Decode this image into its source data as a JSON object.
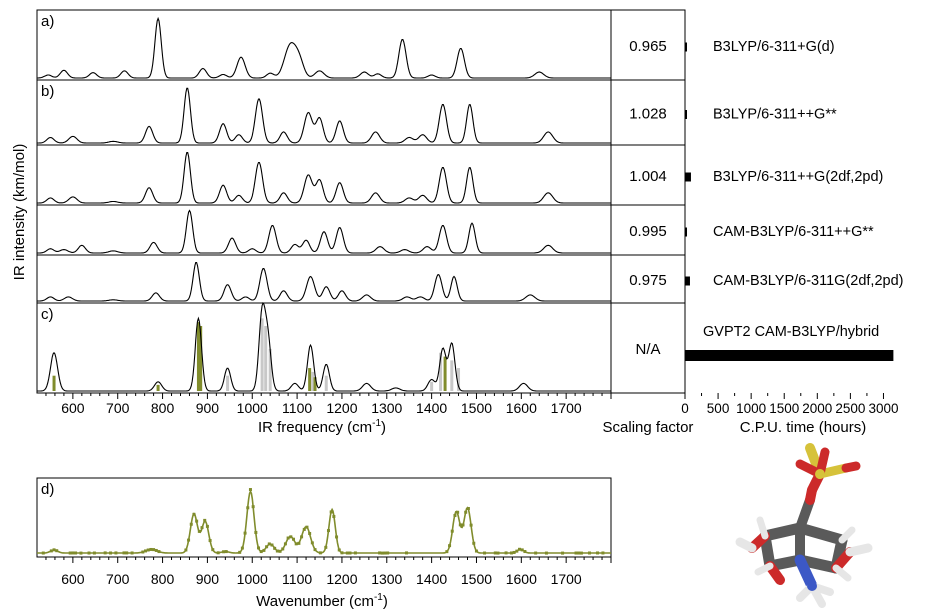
{
  "chart_data": [
    {
      "type": "line",
      "panels": [
        "a)",
        "b)",
        "",
        "",
        "",
        "c)"
      ],
      "ylabel": "IR intensity (km/mol)",
      "xlabel": "IR frequency (cm",
      "xlabel_sup": "-1",
      "xlabel_close": ")",
      "xlim": [
        520,
        1800
      ],
      "x_ticks": [
        600,
        700,
        800,
        900,
        1000,
        1100,
        1200,
        1300,
        1400,
        1500,
        1600,
        1700
      ],
      "series": [
        {
          "name": "B3LYP/6-311+G(d)",
          "scaling_factor": "0.965",
          "cpu_hours": 18,
          "peaks": [
            [
              545,
              0.05,
              8
            ],
            [
              580,
              0.13,
              8
            ],
            [
              645,
              0.09,
              8
            ],
            [
              715,
              0.12,
              8
            ],
            [
              790,
              1.0,
              7
            ],
            [
              890,
              0.16,
              8
            ],
            [
              935,
              0.06,
              8
            ],
            [
              975,
              0.35,
              9
            ],
            [
              1040,
              0.08,
              8
            ],
            [
              1085,
              0.55,
              13
            ],
            [
              1105,
              0.25,
              10
            ],
            [
              1150,
              0.12,
              10
            ],
            [
              1250,
              0.1,
              9
            ],
            [
              1280,
              0.07,
              8
            ],
            [
              1335,
              0.65,
              8
            ],
            [
              1400,
              0.05,
              8
            ],
            [
              1465,
              0.5,
              8
            ],
            [
              1640,
              0.1,
              10
            ]
          ]
        },
        {
          "name": "B3LYP/6-311++G**",
          "scaling_factor": "1.028",
          "cpu_hours": 22,
          "peaks": [
            [
              550,
              0.1,
              8
            ],
            [
              600,
              0.12,
              9
            ],
            [
              690,
              0.03,
              10
            ],
            [
              770,
              0.3,
              8
            ],
            [
              855,
              1.0,
              7
            ],
            [
              935,
              0.35,
              8
            ],
            [
              970,
              0.15,
              8
            ],
            [
              1015,
              0.8,
              8
            ],
            [
              1070,
              0.2,
              8
            ],
            [
              1125,
              0.55,
              9
            ],
            [
              1150,
              0.45,
              8
            ],
            [
              1195,
              0.4,
              8
            ],
            [
              1275,
              0.2,
              9
            ],
            [
              1350,
              0.1,
              9
            ],
            [
              1380,
              0.15,
              9
            ],
            [
              1425,
              0.7,
              8
            ],
            [
              1485,
              0.7,
              7
            ],
            [
              1660,
              0.2,
              10
            ]
          ]
        },
        {
          "name": "B3LYP/6-311++G(2df,2pd)",
          "scaling_factor": "1.004",
          "cpu_hours": 90,
          "peaks": [
            [
              550,
              0.1,
              8
            ],
            [
              600,
              0.12,
              9
            ],
            [
              690,
              0.03,
              10
            ],
            [
              770,
              0.3,
              8
            ],
            [
              855,
              1.0,
              7
            ],
            [
              935,
              0.35,
              8
            ],
            [
              970,
              0.15,
              8
            ],
            [
              1015,
              0.8,
              8
            ],
            [
              1070,
              0.2,
              8
            ],
            [
              1125,
              0.55,
              9
            ],
            [
              1150,
              0.45,
              8
            ],
            [
              1195,
              0.4,
              8
            ],
            [
              1275,
              0.2,
              9
            ],
            [
              1350,
              0.1,
              9
            ],
            [
              1380,
              0.15,
              9
            ],
            [
              1425,
              0.7,
              8
            ],
            [
              1485,
              0.7,
              7
            ],
            [
              1660,
              0.2,
              10
            ]
          ]
        },
        {
          "name": "CAM-B3LYP/6-311++G**",
          "scaling_factor": "0.995",
          "cpu_hours": 25,
          "peaks": [
            [
              550,
              0.1,
              8
            ],
            [
              580,
              0.08,
              9
            ],
            [
              620,
              0.18,
              8
            ],
            [
              690,
              0.05,
              10
            ],
            [
              780,
              0.25,
              8
            ],
            [
              860,
              1.0,
              7
            ],
            [
              955,
              0.35,
              8
            ],
            [
              1000,
              0.1,
              8
            ],
            [
              1045,
              0.65,
              8
            ],
            [
              1095,
              0.2,
              8
            ],
            [
              1120,
              0.3,
              8
            ],
            [
              1160,
              0.5,
              8
            ],
            [
              1195,
              0.6,
              8
            ],
            [
              1285,
              0.15,
              9
            ],
            [
              1340,
              0.08,
              9
            ],
            [
              1390,
              0.15,
              9
            ],
            [
              1425,
              0.65,
              8
            ],
            [
              1490,
              0.7,
              7
            ],
            [
              1660,
              0.18,
              10
            ]
          ]
        },
        {
          "name": "CAM-B3LYP/6-311G(2df,2pd)",
          "scaling_factor": "0.975",
          "cpu_hours": 75,
          "peaks": [
            [
              550,
              0.1,
              8
            ],
            [
              590,
              0.1,
              9
            ],
            [
              690,
              0.03,
              10
            ],
            [
              785,
              0.2,
              8
            ],
            [
              875,
              0.95,
              7
            ],
            [
              945,
              0.4,
              8
            ],
            [
              985,
              0.1,
              8
            ],
            [
              1025,
              0.8,
              8
            ],
            [
              1070,
              0.25,
              8
            ],
            [
              1130,
              0.6,
              9
            ],
            [
              1165,
              0.35,
              8
            ],
            [
              1200,
              0.25,
              8
            ],
            [
              1255,
              0.15,
              9
            ],
            [
              1345,
              0.1,
              9
            ],
            [
              1375,
              0.1,
              9
            ],
            [
              1415,
              0.65,
              8
            ],
            [
              1450,
              0.6,
              7
            ],
            [
              1620,
              0.15,
              10
            ]
          ]
        },
        {
          "name": "GVPT2 CAM-B3LYP/hybrid",
          "scaling_factor": "N/A",
          "cpu_hours": 3150,
          "peaks": [
            [
              558,
              0.5,
              8
            ],
            [
              790,
              0.12,
              8
            ],
            [
              880,
              0.95,
              7
            ],
            [
              945,
              0.3,
              7
            ],
            [
              1022,
              1.0,
              7
            ],
            [
              1035,
              0.65,
              7
            ],
            [
              1095,
              0.1,
              8
            ],
            [
              1130,
              0.6,
              7
            ],
            [
              1165,
              0.35,
              7
            ],
            [
              1255,
              0.1,
              9
            ],
            [
              1320,
              0.04,
              9
            ],
            [
              1400,
              0.15,
              8
            ],
            [
              1425,
              0.55,
              7
            ],
            [
              1445,
              0.62,
              7
            ],
            [
              1605,
              0.1,
              9
            ]
          ],
          "sticks": [
            [
              558,
              0.2,
              "olive"
            ],
            [
              790,
              0.08,
              "olive"
            ],
            [
              880,
              0.9,
              "olive"
            ],
            [
              885,
              0.85,
              "olive"
            ],
            [
              945,
              0.2,
              "gray"
            ],
            [
              1022,
              0.95,
              "gray"
            ],
            [
              1030,
              0.85,
              "gray"
            ],
            [
              1040,
              0.55,
              "gray"
            ],
            [
              1128,
              0.3,
              "olive"
            ],
            [
              1135,
              0.25,
              "gray"
            ],
            [
              1140,
              0.18,
              "olive"
            ],
            [
              1165,
              0.2,
              "gray"
            ],
            [
              1400,
              0.12,
              "gray"
            ],
            [
              1420,
              0.5,
              "gray"
            ],
            [
              1430,
              0.45,
              "olive"
            ],
            [
              1445,
              0.4,
              "gray"
            ],
            [
              1460,
              0.3,
              "gray"
            ]
          ]
        }
      ],
      "scaling_factor_label": "Scaling factor",
      "cpu": {
        "xlabel": "C.P.U. time (hours)",
        "xlim": [
          0,
          3250
        ],
        "x_ticks": [
          0,
          500,
          1000,
          1500,
          2000,
          2500,
          3000
        ]
      }
    },
    {
      "type": "line",
      "panel": "d)",
      "xlabel": "Wavenumber (cm",
      "xlabel_sup": "-1",
      "xlabel_close": ")",
      "xlim": [
        520,
        1800
      ],
      "x_ticks": [
        600,
        700,
        800,
        900,
        1000,
        1100,
        1200,
        1300,
        1400,
        1500,
        1600,
        1700
      ],
      "color": "#808c2c",
      "peaks": [
        [
          558,
          0.04,
          8
        ],
        [
          775,
          0.05,
          12
        ],
        [
          870,
          0.52,
          8
        ],
        [
          895,
          0.42,
          8
        ],
        [
          940,
          0.02,
          8
        ],
        [
          996,
          0.82,
          8
        ],
        [
          1040,
          0.12,
          9
        ],
        [
          1085,
          0.22,
          10
        ],
        [
          1120,
          0.35,
          10
        ],
        [
          1178,
          0.58,
          7
        ],
        [
          1455,
          0.55,
          8
        ],
        [
          1480,
          0.6,
          8
        ],
        [
          1598,
          0.05,
          7
        ]
      ]
    }
  ],
  "colors": {
    "line": "#000000",
    "olive": "#808c2c",
    "gray": "#c8c8c8"
  },
  "molecule_image": "stick model molecule (gray C, red O, white H, blue N, yellow S)"
}
